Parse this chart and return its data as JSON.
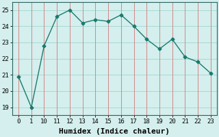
{
  "x_values": [
    0,
    1,
    10,
    11,
    12,
    13,
    14,
    15,
    16,
    17,
    18,
    19,
    20,
    21,
    22,
    23
  ],
  "y": [
    20.9,
    19.0,
    22.8,
    24.6,
    25.0,
    24.2,
    24.4,
    24.3,
    24.7,
    24.0,
    23.2,
    22.6,
    23.2,
    22.1,
    21.8,
    21.1
  ],
  "xlabel": "Humidex (Indice chaleur)",
  "xtick_labels": [
    "0",
    "1",
    "10",
    "11",
    "12",
    "13",
    "14",
    "15",
    "16",
    "17",
    "18",
    "19",
    "20",
    "21",
    "22",
    "23"
  ],
  "yticks": [
    19,
    20,
    21,
    22,
    23,
    24,
    25
  ],
  "ylim": [
    18.5,
    25.5
  ],
  "line_color": "#1a7a6e",
  "marker": "D",
  "marker_size": 2.5,
  "bg_color": "#d4efed",
  "hgrid_color": "#a8d8d4",
  "vgrid_color": "#d08888",
  "tick_fontsize": 6.5,
  "label_fontsize": 8
}
